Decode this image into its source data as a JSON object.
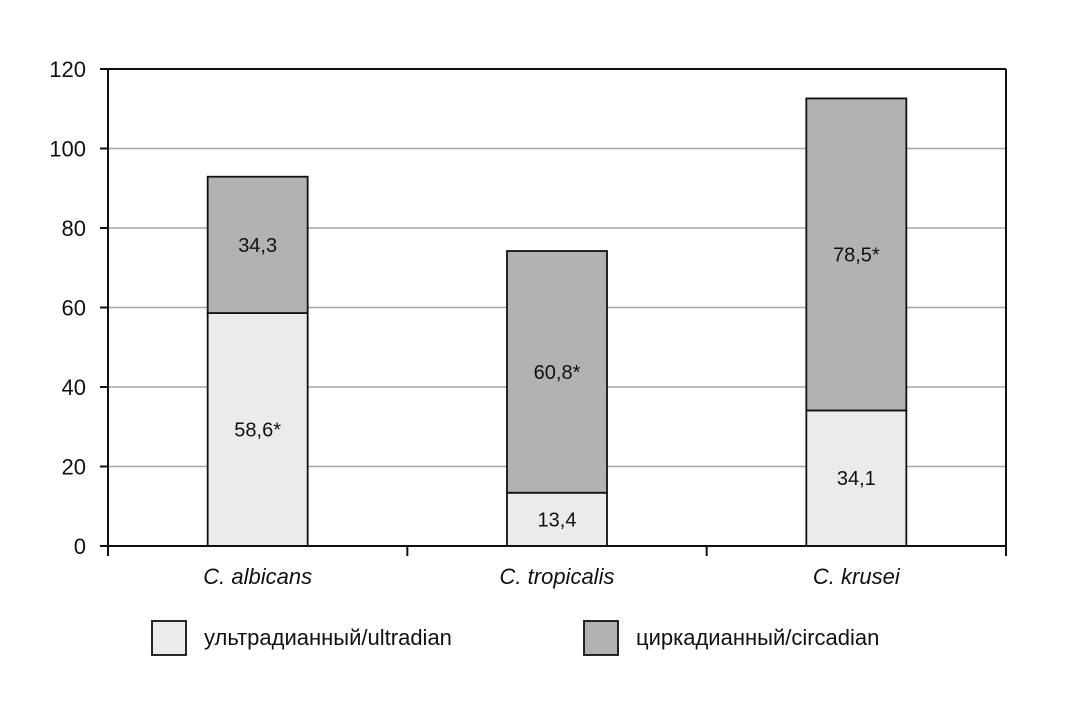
{
  "chart_data": {
    "type": "bar",
    "stacked": true,
    "title": "",
    "xlabel": "",
    "ylabel": "",
    "ylim": [
      0,
      120
    ],
    "yticks": [
      "0",
      "20",
      "40",
      "60",
      "80",
      "100",
      "120"
    ],
    "grid": true,
    "legend_position": "bottom",
    "categories": [
      "C. albicans",
      "C. tropicalis",
      "C. krusei"
    ],
    "series": [
      {
        "name": "ультрадианный/ultradian",
        "values": [
          58.6,
          13.4,
          34.1
        ],
        "labels": [
          "58,6*",
          "13,4",
          "34,1"
        ],
        "color": "#ebebeb"
      },
      {
        "name": "циркадианный/circadian",
        "values": [
          34.3,
          60.8,
          78.5
        ],
        "labels": [
          "34,3",
          "60,8*",
          "78,5*"
        ],
        "color": "#b2b2b2"
      }
    ]
  }
}
